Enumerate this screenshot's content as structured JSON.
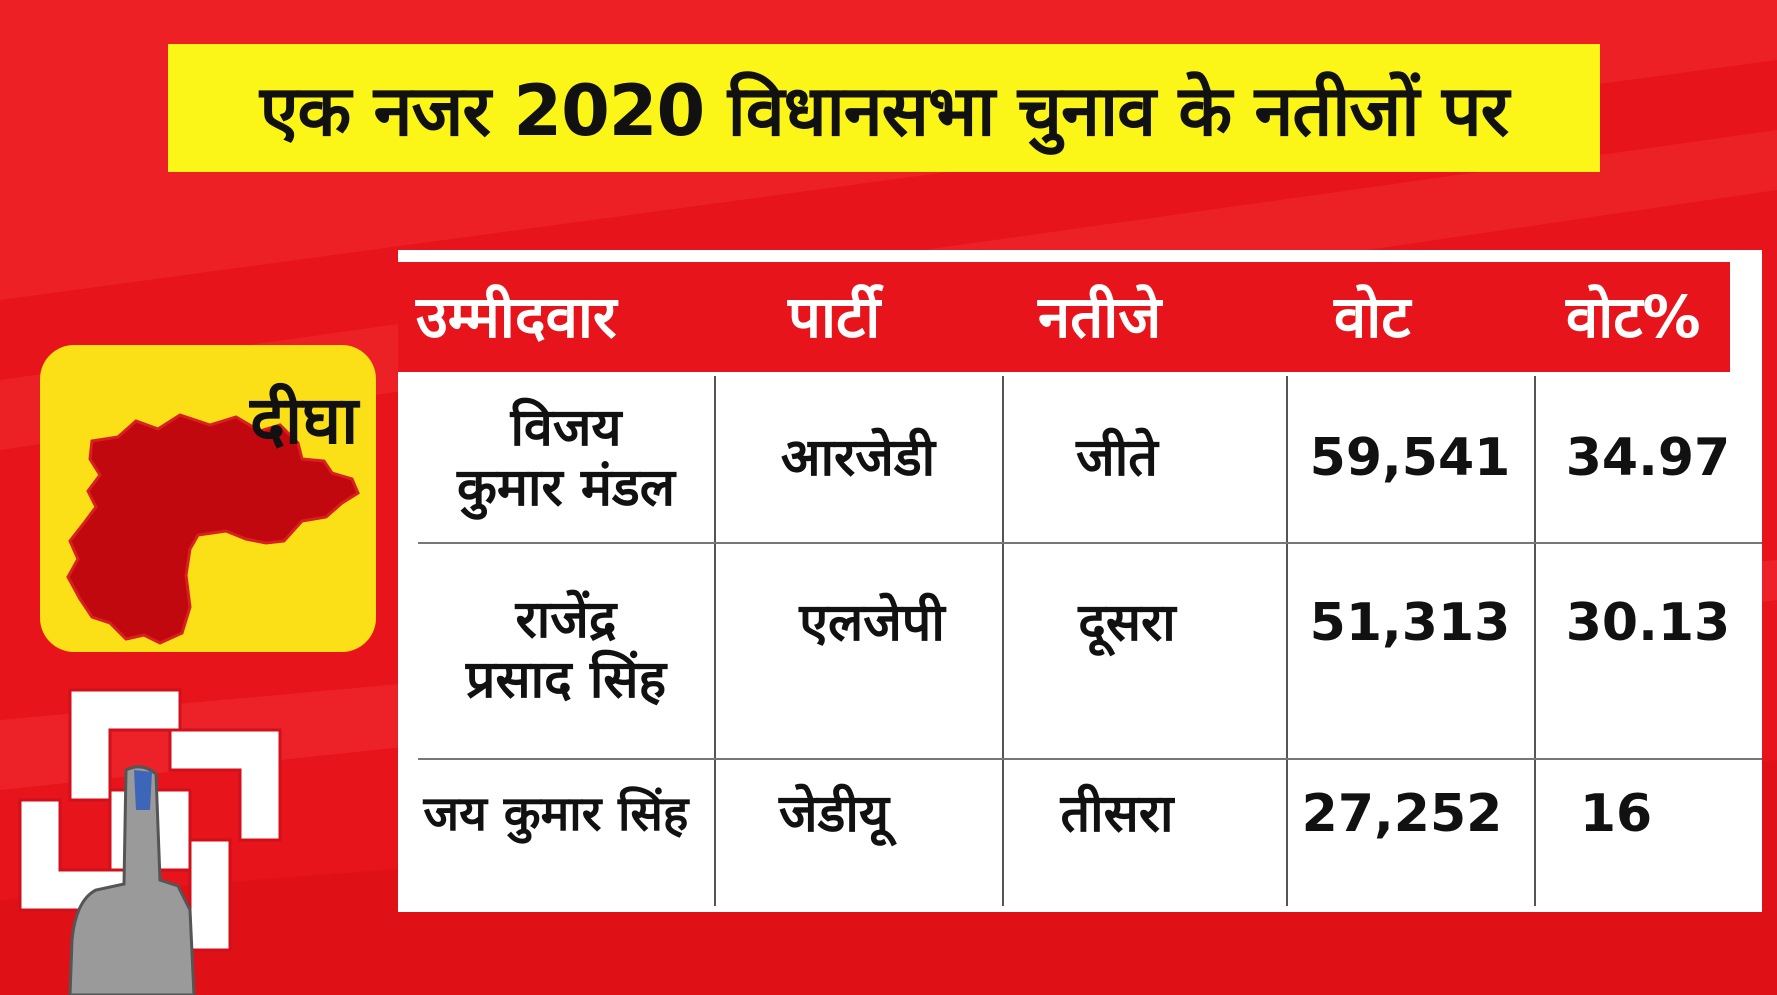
{
  "title": "एक नजर 2020 विधानसभा चुनाव के नतीजों पर",
  "constituency": "दीघा",
  "colors": {
    "background": "#e8141b",
    "banner": "#fbf518",
    "card": "#fbe017",
    "map": "#c0080e"
  },
  "icons": [
    "constituency-map-icon",
    "election-symbol-icon",
    "voting-finger-icon"
  ],
  "table": {
    "headers": [
      "उम्मीदवार",
      "पार्टी",
      "नतीजे",
      "वोट",
      "वोट%"
    ],
    "rows": [
      {
        "candidate_line1": "विजय",
        "candidate_line2": "कुमार मंडल",
        "party": "आरजेडी",
        "result": "जीते",
        "votes": "59,541",
        "percent": "34.97"
      },
      {
        "candidate_line1": "राजेंद्र",
        "candidate_line2": "प्रसाद सिंह",
        "party": "एलजेपी",
        "result": "दूसरा",
        "votes": "51,313",
        "percent": "30.13"
      },
      {
        "candidate_line1": "जय कुमार सिंह",
        "candidate_line2": "",
        "party": "जेडीयू",
        "result": "तीसरा",
        "votes": "27,252",
        "percent": "16"
      }
    ]
  }
}
